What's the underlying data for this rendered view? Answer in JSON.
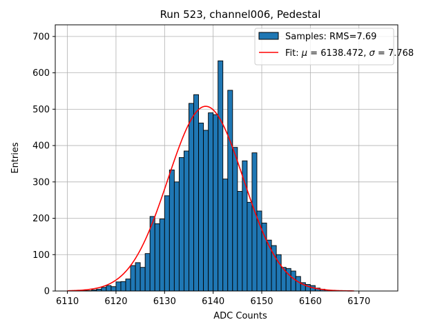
{
  "chart_data": {
    "type": "histogram",
    "title": "Run 523, channel006, Pedestal",
    "xlabel": "ADC Counts",
    "ylabel": "Entries",
    "xlim": [
      6107.5,
      6178
    ],
    "ylim": [
      0,
      732
    ],
    "xticks": [
      6110,
      6120,
      6130,
      6140,
      6150,
      6160,
      6170
    ],
    "yticks": [
      0,
      100,
      200,
      300,
      400,
      500,
      600,
      700
    ],
    "grid": true,
    "legend_position": "top-right",
    "bin_width": 1,
    "bins": {
      "left_edges": [
        6113,
        6114,
        6115,
        6116,
        6117,
        6118,
        6119,
        6120,
        6121,
        6122,
        6123,
        6124,
        6125,
        6126,
        6127,
        6128,
        6129,
        6130,
        6131,
        6132,
        6133,
        6134,
        6135,
        6136,
        6137,
        6138,
        6139,
        6140,
        6141,
        6142,
        6143,
        6144,
        6145,
        6146,
        6147,
        6148,
        6149,
        6150,
        6151,
        6152,
        6153,
        6154,
        6155,
        6156,
        6157,
        6158,
        6159,
        6160,
        6161,
        6162,
        6163,
        6164,
        6165,
        6166,
        6167
      ],
      "counts": [
        1,
        1,
        3,
        5,
        10,
        15,
        12,
        25,
        26,
        33,
        70,
        78,
        65,
        103,
        205,
        185,
        198,
        262,
        333,
        300,
        367,
        385,
        516,
        540,
        462,
        442,
        490,
        485,
        633,
        308,
        552,
        395,
        274,
        358,
        244,
        380,
        220,
        187,
        140,
        125,
        100,
        65,
        62,
        55,
        40,
        23,
        18,
        15,
        8,
        5,
        3,
        2,
        1,
        1,
        0
      ]
    },
    "series": [
      {
        "name": "Samples: RMS=7.69",
        "kind": "histogram",
        "color": "#1f77b4",
        "edgecolor": "#000000"
      },
      {
        "name": "Fit: μ = 6138.472, σ = 7.768",
        "kind": "gaussian-fit",
        "color": "#ff0000",
        "mu": 6138.472,
        "sigma": 7.768,
        "amplitude": 508,
        "x_range": [
          6110,
          6169
        ]
      }
    ],
    "legend": {
      "samples_label": "Samples: RMS=7.69",
      "fit_prefix": "Fit: ",
      "mu_symbol": "μ",
      "mu_value": " = 6138.472, ",
      "sigma_symbol": "σ",
      "sigma_value": " = 7.768"
    }
  }
}
